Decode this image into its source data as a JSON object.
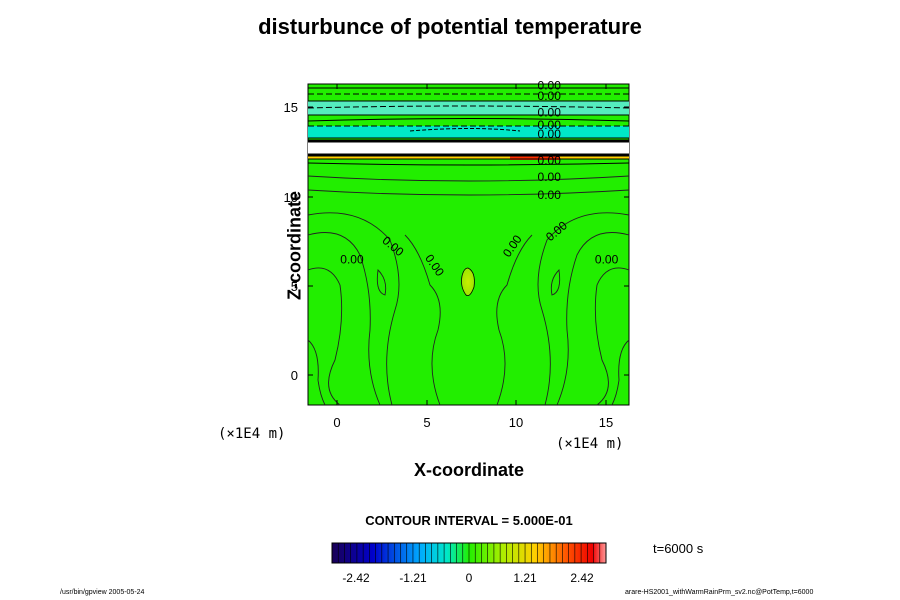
{
  "chart_data": {
    "type": "heatmap",
    "title": "disturbunce of potential temperature",
    "xlabel": "X-coordinate",
    "ylabel": "Z-coordinate",
    "x_unit": "(×1E4 m)",
    "z_unit": "(×1E4 m)",
    "xlim": [
      -1.6,
      16.3
    ],
    "ylim": [
      -1.6,
      16.3
    ],
    "x_ticks": [
      0,
      5,
      10,
      15
    ],
    "y_ticks": [
      0,
      5,
      10,
      15
    ],
    "contour_interval": "CONTOUR INTERVAL = 5.000E-01",
    "time": "t=6000 s",
    "colorbar": {
      "min": -2.8,
      "max": 2.8,
      "ticks": [
        -2.42,
        -1.21,
        0,
        1.21,
        2.42
      ],
      "tick_labels": [
        "-2.42",
        "-1.21",
        "0",
        "1.21",
        "2.42"
      ]
    },
    "contour_labels": [
      {
        "text": "0.00",
        "x": 11.2,
        "z": 16.0
      },
      {
        "text": "0.00",
        "x": 11.2,
        "z": 15.4
      },
      {
        "text": "0.00",
        "x": 11.2,
        "z": 14.5
      },
      {
        "text": "0.00",
        "x": 11.2,
        "z": 13.8
      },
      {
        "text": "0.00",
        "x": 11.2,
        "z": 13.3
      },
      {
        "text": "0.00",
        "x": 11.2,
        "z": 11.8
      },
      {
        "text": "0.00",
        "x": 11.2,
        "z": 10.9
      },
      {
        "text": "0.00",
        "x": 11.2,
        "z": 9.9
      },
      {
        "text": "0.00",
        "x": 0.2,
        "z": 6.3
      },
      {
        "text": "0.00",
        "x": 2.5,
        "z": 7.5,
        "rot": 40
      },
      {
        "text": "0.00",
        "x": 4.9,
        "z": 6.6,
        "rot": 55
      },
      {
        "text": "0.00",
        "x": 9.6,
        "z": 6.6,
        "rot": -55
      },
      {
        "text": "0.00",
        "x": 11.9,
        "z": 7.5,
        "rot": -40
      },
      {
        "text": "0.00",
        "x": 14.4,
        "z": 6.3
      }
    ]
  },
  "footer": {
    "left": "/usr/bin/gpview 2005-05-24",
    "right": "arare-HS2001_withWarmRainPrm_sv2.nc@PotTemp,t=6000"
  }
}
